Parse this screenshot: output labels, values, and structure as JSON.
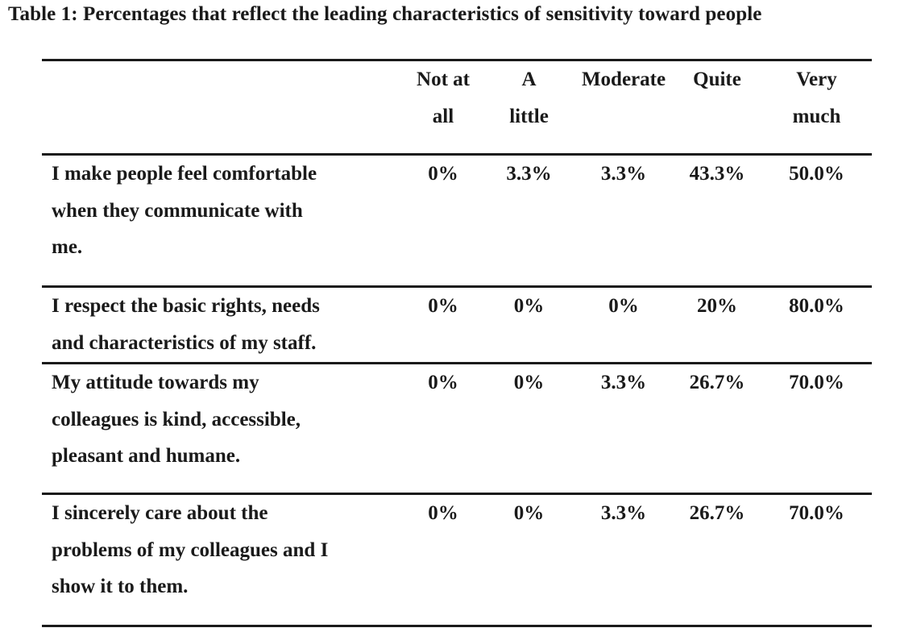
{
  "caption": "Table 1: Percentages that reflect the leading characteristics of sensitivity toward people",
  "columns": [
    {
      "line1": "Not at",
      "line2": "all"
    },
    {
      "line1": "A",
      "line2": "little"
    },
    {
      "line1": "Moderate",
      "line2": ""
    },
    {
      "line1": "Quite",
      "line2": ""
    },
    {
      "line1": "Very",
      "line2": "much"
    }
  ],
  "rows": [
    {
      "lines": [
        "I make people feel comfortable",
        "when they communicate with",
        "me."
      ],
      "values": [
        "0%",
        "3.3%",
        "3.3%",
        "43.3%",
        "50.0%"
      ]
    },
    {
      "lines": [
        "I respect the basic rights, needs",
        "and characteristics of my staff."
      ],
      "values": [
        "0%",
        "0%",
        "0%",
        "20%",
        "80.0%"
      ]
    },
    {
      "lines": [
        "My attitude towards my",
        "colleagues is kind, accessible,",
        "pleasant and humane."
      ],
      "values": [
        "0%",
        "0%",
        "3.3%",
        "26.7%",
        "70.0%"
      ]
    },
    {
      "lines": [
        "I sincerely care about the",
        "problems of my colleagues and I",
        "show it to them."
      ],
      "values": [
        "0%",
        "0%",
        "3.3%",
        "26.7%",
        "70.0%"
      ]
    }
  ]
}
